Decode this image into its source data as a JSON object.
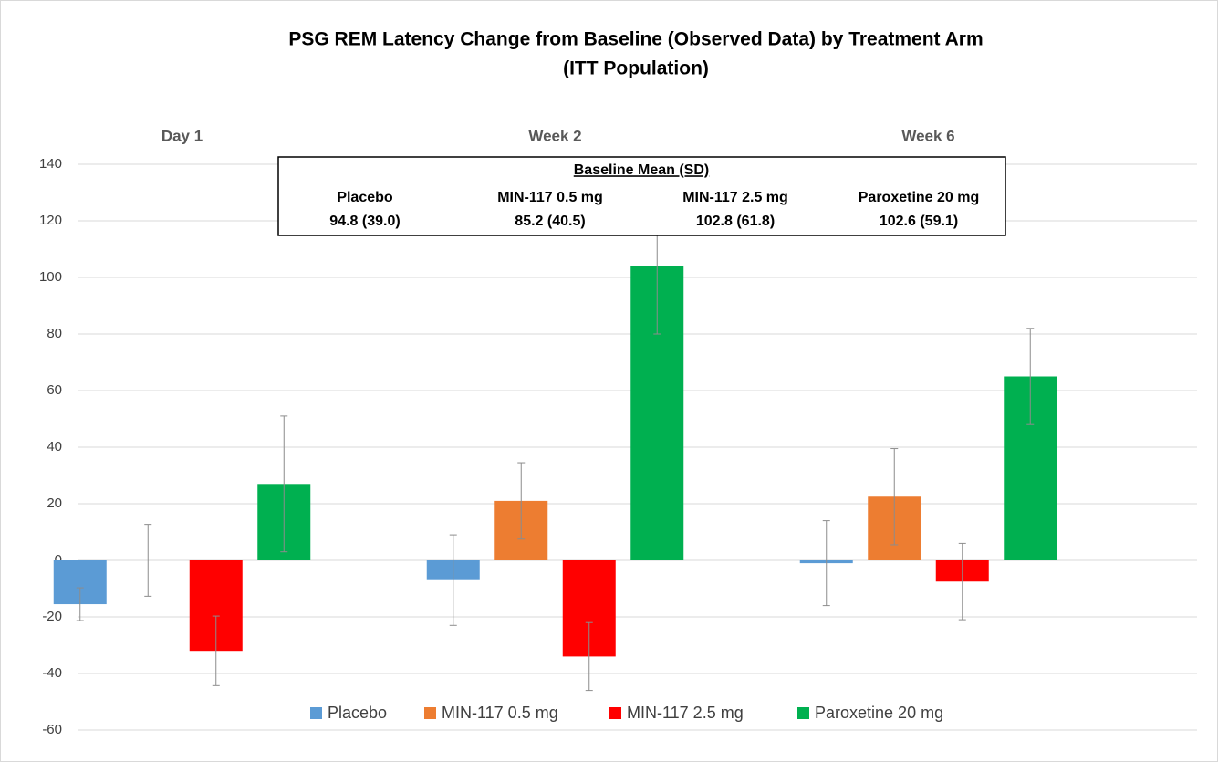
{
  "chart_data": {
    "type": "bar",
    "title": [
      "PSG REM Latency Change from Baseline (Observed Data) by Treatment Arm",
      "(ITT Population)"
    ],
    "categories": [
      "Day 1",
      "Week 2",
      "Week 6"
    ],
    "series": [
      {
        "name": "Placebo",
        "color": "#5b9bd5",
        "values": [
          -15.5,
          -7,
          -1
        ],
        "errors": [
          5.8,
          16,
          15
        ]
      },
      {
        "name": "MIN-117 0.5 mg",
        "color": "#ed7d31",
        "values": [
          0,
          21,
          22.5
        ],
        "errors": [
          12.7,
          13.5,
          17
        ]
      },
      {
        "name": "MIN-117 2.5 mg",
        "color": "#ff0000",
        "values": [
          -32,
          -34,
          -7.5
        ],
        "errors": [
          12.3,
          12,
          13.5
        ]
      },
      {
        "name": "Paroxetine 20 mg",
        "color": "#00b050",
        "values": [
          27,
          104,
          65
        ],
        "errors": [
          24,
          24,
          17
        ]
      }
    ],
    "ylim": [
      -60,
      140
    ],
    "yticks": [
      -60,
      -40,
      -20,
      0,
      20,
      40,
      60,
      80,
      100,
      120,
      140
    ],
    "grid": true,
    "baseline_box": {
      "title": "Baseline Mean (SD)",
      "columns": [
        {
          "name": "Placebo",
          "value": "94.8 (39.0)"
        },
        {
          "name": "MIN-117 0.5 mg",
          "value": "85.2 (40.5)"
        },
        {
          "name": "MIN-117 2.5 mg",
          "value": "102.8 (61.8)"
        },
        {
          "name": "Paroxetine 20 mg",
          "value": "102.6 (59.1)"
        }
      ]
    }
  }
}
